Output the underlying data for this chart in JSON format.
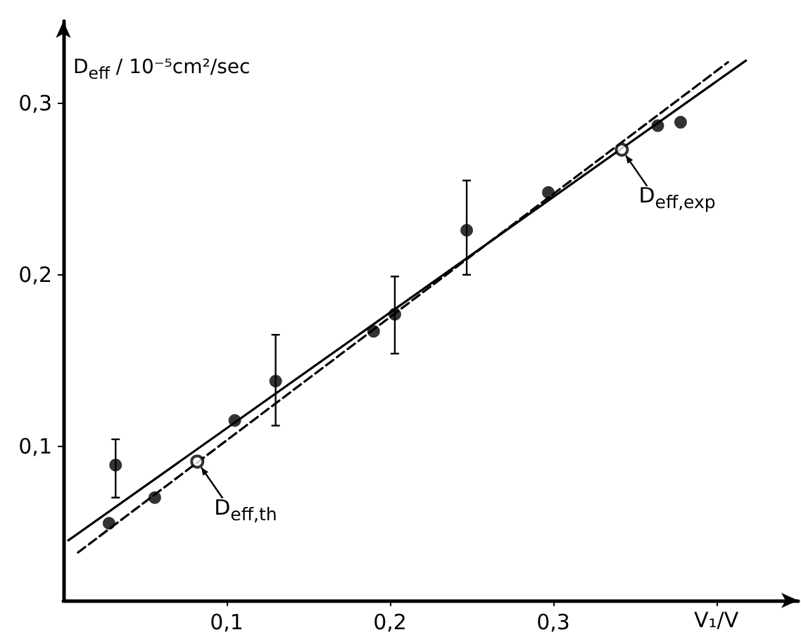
{
  "chart_data": {
    "type": "scatter",
    "ylabel": "D$_{eff}$ / 10⁻⁵cm²/sec",
    "xlabel": "V₁/V",
    "xlim": [
      0,
      0.45
    ],
    "ylim": [
      0.01,
      0.348
    ],
    "xticks": [
      {
        "value": 0.1,
        "label": "0,1"
      },
      {
        "value": 0.2,
        "label": "0,2"
      },
      {
        "value": 0.3,
        "label": "0,3"
      },
      {
        "value": 0.4,
        "label": null
      }
    ],
    "yticks": [
      {
        "value": 0.1,
        "label": "0,1"
      },
      {
        "value": 0.2,
        "label": "0,2"
      },
      {
        "value": 0.3,
        "label": "0,3"
      }
    ],
    "grid": false,
    "series": [
      {
        "marker": "circle",
        "color": "#000000",
        "x": [
          0.028,
          0.032,
          0.056,
          0.105,
          0.13,
          0.19,
          0.203,
          0.247,
          0.297,
          0.364,
          0.378
        ],
        "values": [
          0.055,
          0.089,
          0.07,
          0.115,
          0.138,
          0.167,
          0.177,
          0.226,
          0.248,
          0.287,
          0.289
        ],
        "errors": [
          null,
          [
            0.07,
            0.104
          ],
          null,
          null,
          [
            0.112,
            0.165
          ],
          null,
          [
            0.154,
            0.199
          ],
          [
            0.2,
            0.255
          ],
          null,
          null,
          null
        ]
      },
      {
        "type": "line",
        "marker": "none",
        "line_style": "solid",
        "color": "#000000",
        "x": [
          0.003,
          0.418
        ],
        "values": [
          0.045,
          0.325
        ]
      },
      {
        "type": "line",
        "marker": "none",
        "line_style": "dashed",
        "color": "#000000",
        "x": [
          0.009,
          0.407
        ],
        "values": [
          0.038,
          0.324
        ]
      }
    ],
    "annotations": [
      {
        "text": "D$_{eff,exp}$",
        "x": 0.342,
        "y": 0.273
      },
      {
        "text": "D$_{eff,th}$",
        "x": 0.082,
        "y": 0.091
      }
    ]
  }
}
